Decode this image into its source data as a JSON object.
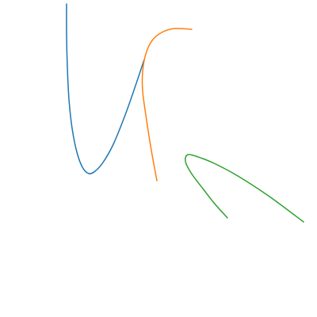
{
  "chart_data": {
    "type": "line",
    "title": "",
    "xlabel": "",
    "ylabel": "",
    "axes_visible": false,
    "grid": false,
    "legend": "none",
    "series": [
      {
        "key": "blue",
        "color": "#1f77b4",
        "points": [
          [
            84,
            5
          ],
          [
            84,
            45
          ],
          [
            85,
            85
          ],
          [
            87,
            125
          ],
          [
            91,
            162
          ],
          [
            97,
            192
          ],
          [
            104,
            211
          ],
          [
            112,
            219
          ],
          [
            120,
            216
          ],
          [
            130,
            205
          ],
          [
            143,
            182
          ],
          [
            158,
            145
          ],
          [
            171,
            108
          ],
          [
            182,
            75
          ]
        ]
      },
      {
        "key": "orange",
        "color": "#ff7f0e",
        "points": [
          [
            198,
            228
          ],
          [
            191,
            190
          ],
          [
            185,
            152
          ],
          [
            180,
            115
          ],
          [
            180,
            90
          ],
          [
            184,
            68
          ],
          [
            192,
            51
          ],
          [
            204,
            41
          ],
          [
            220,
            36
          ],
          [
            242,
            37
          ]
        ]
      },
      {
        "key": "green",
        "color": "#2ca02c",
        "points": [
          [
            287,
            275
          ],
          [
            270,
            256
          ],
          [
            256,
            238
          ],
          [
            243,
            221
          ],
          [
            235,
            207
          ],
          [
            234,
            199
          ],
          [
            238,
            195
          ],
          [
            250,
            198
          ],
          [
            270,
            206
          ],
          [
            300,
            222
          ],
          [
            340,
            248
          ],
          [
            383,
            280
          ]
        ]
      }
    ]
  }
}
